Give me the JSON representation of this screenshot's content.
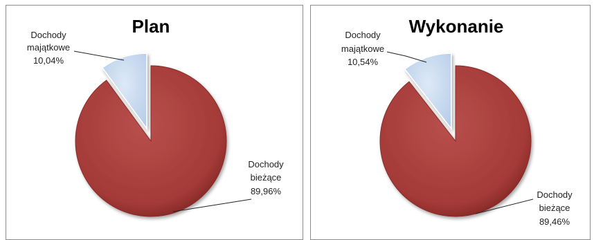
{
  "chart_data": [
    {
      "type": "pie",
      "title": "Plan",
      "exploded": "Dochody majątkowe",
      "slices": [
        {
          "name": "Dochody bieżące",
          "value": 89.96,
          "color": "#a33a37",
          "label_lines": [
            "Dochody",
            "bieżące",
            "89,96%"
          ]
        },
        {
          "name": "Dochody majątkowe",
          "value": 10.04,
          "color": "#c6d9ef",
          "label_lines": [
            "Dochody",
            "majątkowe",
            "10,04%"
          ]
        }
      ]
    },
    {
      "type": "pie",
      "title": "Wykonanie",
      "exploded": "Dochody majątkowe",
      "slices": [
        {
          "name": "Dochody bieżące",
          "value": 89.46,
          "color": "#a33a37",
          "label_lines": [
            "Dochody",
            "bieżące",
            "89,46%"
          ]
        },
        {
          "name": "Dochody majątkowe",
          "value": 10.54,
          "color": "#c6d9ef",
          "label_lines": [
            "Dochody",
            "majątkowe",
            "10,54%"
          ]
        }
      ]
    }
  ]
}
